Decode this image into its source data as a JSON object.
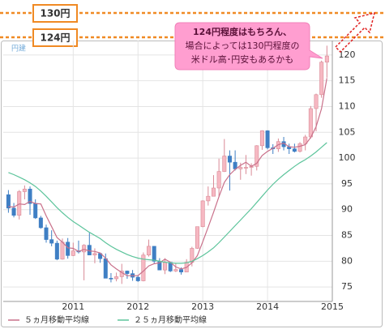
{
  "chart_data": {
    "type": "candlestick",
    "corner_label": "円建",
    "x": [
      2010.0,
      2010.0833,
      2010.1667,
      2010.25,
      2010.3333,
      2010.4167,
      2010.5,
      2010.5833,
      2010.6667,
      2010.75,
      2010.8333,
      2010.9167,
      2011.0,
      2011.0833,
      2011.1667,
      2011.25,
      2011.3333,
      2011.4167,
      2011.5,
      2011.5833,
      2011.6667,
      2011.75,
      2011.8333,
      2011.9167,
      2012.0,
      2012.0833,
      2012.1667,
      2012.25,
      2012.3333,
      2012.4167,
      2012.5,
      2012.5833,
      2012.6667,
      2012.75,
      2012.8333,
      2012.9167,
      2013.0,
      2013.0833,
      2013.1667,
      2013.25,
      2013.3333,
      2013.4167,
      2013.5,
      2013.5833,
      2013.6667,
      2013.75,
      2013.8333,
      2013.9167,
      2014.0,
      2014.0833,
      2014.1667,
      2014.25,
      2014.3333,
      2014.4167,
      2014.5,
      2014.5833,
      2014.6667,
      2014.75,
      2014.8333,
      2014.9167
    ],
    "open": [
      92.9,
      90.3,
      88.9,
      93.5,
      94.0,
      91.2,
      88.4,
      86.5,
      84.2,
      83.5,
      80.4,
      83.7,
      81.1,
      82.0,
      81.8,
      83.1,
      81.2,
      81.5,
      80.5,
      76.7,
      76.6,
      77.0,
      78.1,
      77.6,
      76.9,
      76.2,
      81.2,
      82.9,
      80.0,
      78.3,
      79.8,
      78.1,
      78.4,
      77.9,
      79.8,
      82.5,
      86.7,
      91.7,
      92.6,
      94.2,
      97.4,
      100.4,
      99.2,
      97.9,
      98.2,
      98.2,
      98.4,
      102.4,
      105.3,
      102.0,
      101.8,
      103.2,
      102.2,
      101.8,
      101.3,
      102.8,
      104.1,
      109.6,
      112.3,
      118.6
    ],
    "high": [
      93.8,
      91.3,
      93.8,
      94.7,
      94.5,
      92.0,
      88.8,
      87.1,
      86.0,
      84.0,
      84.4,
      84.5,
      83.6,
      84.0,
      83.3,
      85.5,
      82.5,
      81.7,
      81.5,
      77.7,
      77.8,
      79.5,
      78.2,
      78.3,
      77.3,
      81.7,
      84.2,
      82.9,
      80.6,
      80.6,
      79.9,
      79.7,
      78.8,
      80.4,
      82.8,
      86.6,
      91.8,
      94.5,
      96.7,
      99.9,
      103.7,
      101.5,
      101.5,
      99.1,
      100.6,
      99.0,
      102.5,
      105.4,
      105.4,
      102.7,
      103.8,
      104.1,
      102.8,
      102.8,
      103.1,
      104.5,
      110.1,
      112.5,
      118.9,
      121.8
    ],
    "low": [
      89.4,
      88.5,
      88.1,
      92.0,
      89.0,
      88.2,
      86.3,
      83.6,
      82.9,
      80.2,
      80.3,
      80.5,
      81.0,
      81.5,
      76.3,
      81.3,
      79.6,
      79.7,
      76.9,
      75.9,
      76.1,
      75.6,
      76.6,
      76.2,
      76.0,
      76.1,
      80.9,
      79.6,
      78.3,
      77.5,
      77.9,
      77.9,
      77.4,
      77.9,
      79.0,
      82.4,
      86.6,
      90.8,
      92.6,
      92.6,
      97.3,
      93.7,
      97.6,
      95.8,
      96.9,
      96.6,
      97.6,
      101.6,
      101.7,
      100.8,
      101.2,
      101.5,
      100.8,
      101.1,
      101.1,
      101.5,
      103.8,
      105.2,
      111.7,
      115.6
    ],
    "close": [
      90.3,
      88.9,
      93.5,
      94.0,
      91.2,
      88.4,
      86.5,
      84.2,
      83.5,
      80.4,
      83.7,
      81.1,
      82.0,
      81.8,
      83.1,
      81.2,
      81.5,
      80.5,
      76.7,
      76.6,
      77.0,
      78.1,
      77.6,
      76.9,
      76.2,
      81.2,
      82.9,
      80.0,
      78.3,
      79.8,
      78.1,
      78.4,
      77.9,
      79.8,
      82.5,
      86.7,
      91.7,
      92.6,
      94.2,
      97.4,
      100.4,
      99.2,
      97.9,
      98.2,
      98.2,
      98.4,
      102.4,
      105.3,
      102.0,
      101.8,
      103.2,
      102.2,
      101.8,
      101.3,
      102.8,
      104.1,
      109.6,
      112.3,
      118.6,
      119.8
    ],
    "up_color": "#f6b8c2",
    "down_color": "#3f7fc4",
    "series": [
      {
        "name": "５ヵ月移動平均線",
        "color": "#c9708a",
        "values": [
          90.6,
          90.5,
          91.1,
          91.0,
          91.6,
          91.2,
          91.1,
          88.8,
          86.7,
          84.6,
          83.7,
          82.6,
          82.5,
          81.9,
          82.3,
          82.0,
          81.9,
          81.6,
          80.6,
          79.3,
          78.5,
          77.8,
          77.2,
          77.2,
          77.2,
          78.1,
          79.1,
          79.5,
          79.7,
          80.4,
          79.8,
          78.9,
          78.5,
          78.8,
          79.7,
          81.1,
          83.8,
          86.6,
          89.5,
          92.5,
          95.3,
          96.8,
          97.8,
          98.6,
          99.2,
          98.4,
          99.0,
          100.5,
          101.3,
          101.9,
          102.6,
          102.9,
          102.2,
          102.1,
          102.3,
          102.6,
          104.0,
          106.1,
          109.6,
          115.5
        ]
      },
      {
        "name": "２５ヵ月移動平均線",
        "color": "#5cc49b",
        "values": [
          97.2,
          96.8,
          96.3,
          95.8,
          95.2,
          94.5,
          93.6,
          92.6,
          91.5,
          90.4,
          89.4,
          88.5,
          87.7,
          87.0,
          86.3,
          85.6,
          85.0,
          84.4,
          83.6,
          82.9,
          82.3,
          81.8,
          81.3,
          80.9,
          80.6,
          80.4,
          80.3,
          80.2,
          80.0,
          79.8,
          79.7,
          79.6,
          79.6,
          79.7,
          80.0,
          80.5,
          81.1,
          81.8,
          82.6,
          83.6,
          84.7,
          85.8,
          86.9,
          88.0,
          89.1,
          90.2,
          91.4,
          92.6,
          93.8,
          94.9,
          95.9,
          96.8,
          97.6,
          98.4,
          99.1,
          99.7,
          100.4,
          101.2,
          102.1,
          103.0
        ]
      }
    ],
    "xlim": [
      2009.92,
      2015.0
    ],
    "xticks": [
      2011,
      2012,
      2013,
      2014,
      2015
    ],
    "ylim": [
      72.2,
      122.8
    ],
    "yticks": [
      75,
      80,
      85,
      90,
      95,
      100,
      105,
      110,
      115,
      120
    ],
    "grid": true,
    "legend": "bottom-left",
    "annotations": {
      "level_labels": [
        "130円",
        "124円"
      ],
      "callout": [
        "124円程度はもちろん、",
        "場合によっては130円程度の",
        "米ドル高･円安もあるかも"
      ]
    }
  }
}
